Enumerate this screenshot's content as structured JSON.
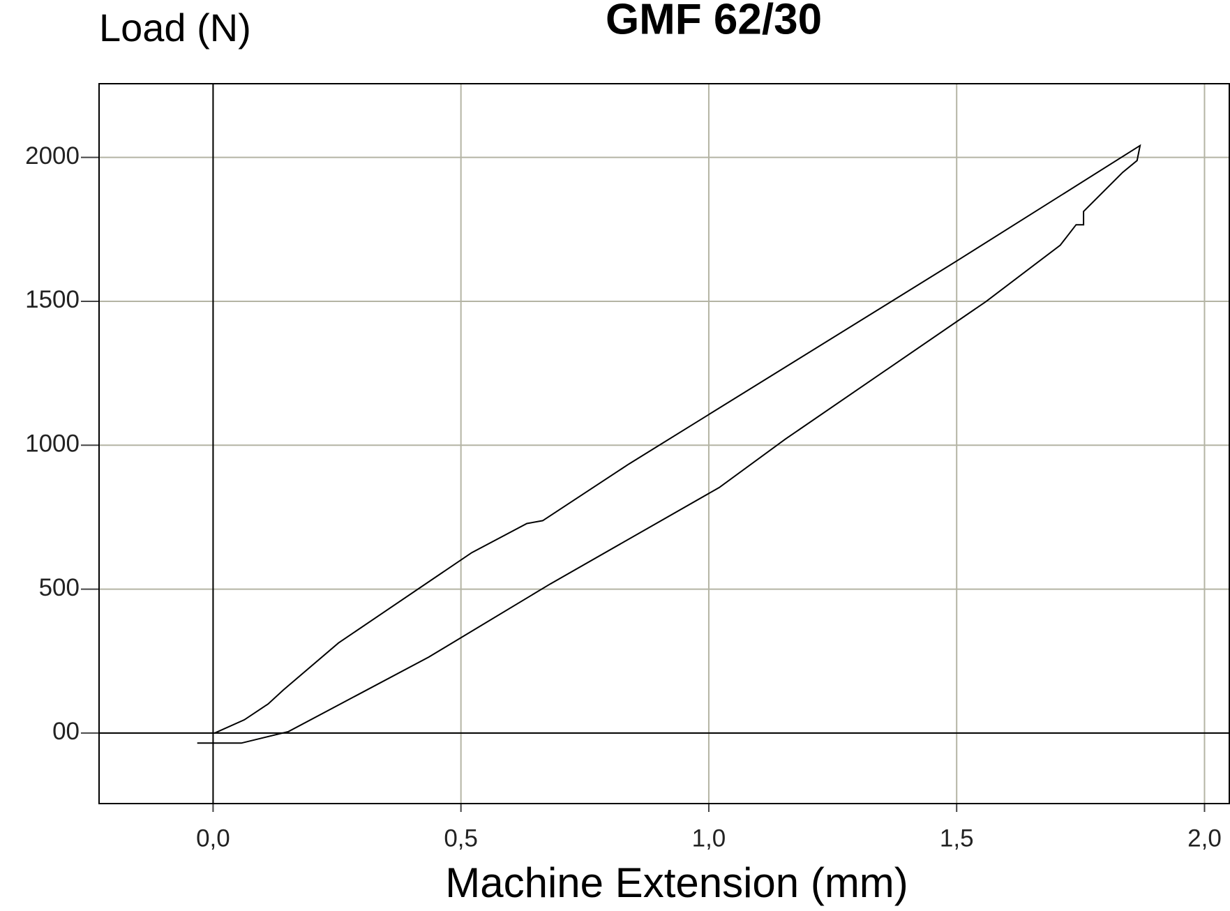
{
  "chart_data": {
    "type": "line",
    "title": "GMF 62/30",
    "y_label": "Load (N)",
    "x_label": "Machine Extension (mm)",
    "x": [
      -0.032,
      0.057,
      0.152,
      0.435,
      0.68,
      1.021,
      1.155,
      1.559,
      1.709,
      1.741,
      1.756,
      1.756,
      1.835,
      1.864,
      1.87,
      1.5,
      0.839,
      0.665,
      0.633,
      0.522,
      0.253,
      0.142,
      0.111,
      0.063,
      0.003
    ],
    "values": [
      -35,
      -35,
      5,
      264,
      518,
      853,
      1022,
      1499,
      1695,
      1766,
      1766,
      1812,
      1948,
      1989,
      2041,
      1640,
      935,
      738,
      728,
      627,
      313,
      150,
      101,
      46,
      0
    ],
    "color": "#000000",
    "xlim": [
      -0.23,
      2.05
    ],
    "ylim": [
      -245,
      2256
    ],
    "xticks": [
      {
        "value": 0,
        "label": "0,0"
      },
      {
        "value": 0.5,
        "label": "0,5"
      },
      {
        "value": 1,
        "label": "1,0"
      },
      {
        "value": 1.5,
        "label": "1,5"
      },
      {
        "value": 2,
        "label": "2,0"
      }
    ],
    "yticks": [
      {
        "value": 0,
        "label": "00"
      },
      500,
      1000,
      1500,
      2000
    ],
    "grid": true
  }
}
